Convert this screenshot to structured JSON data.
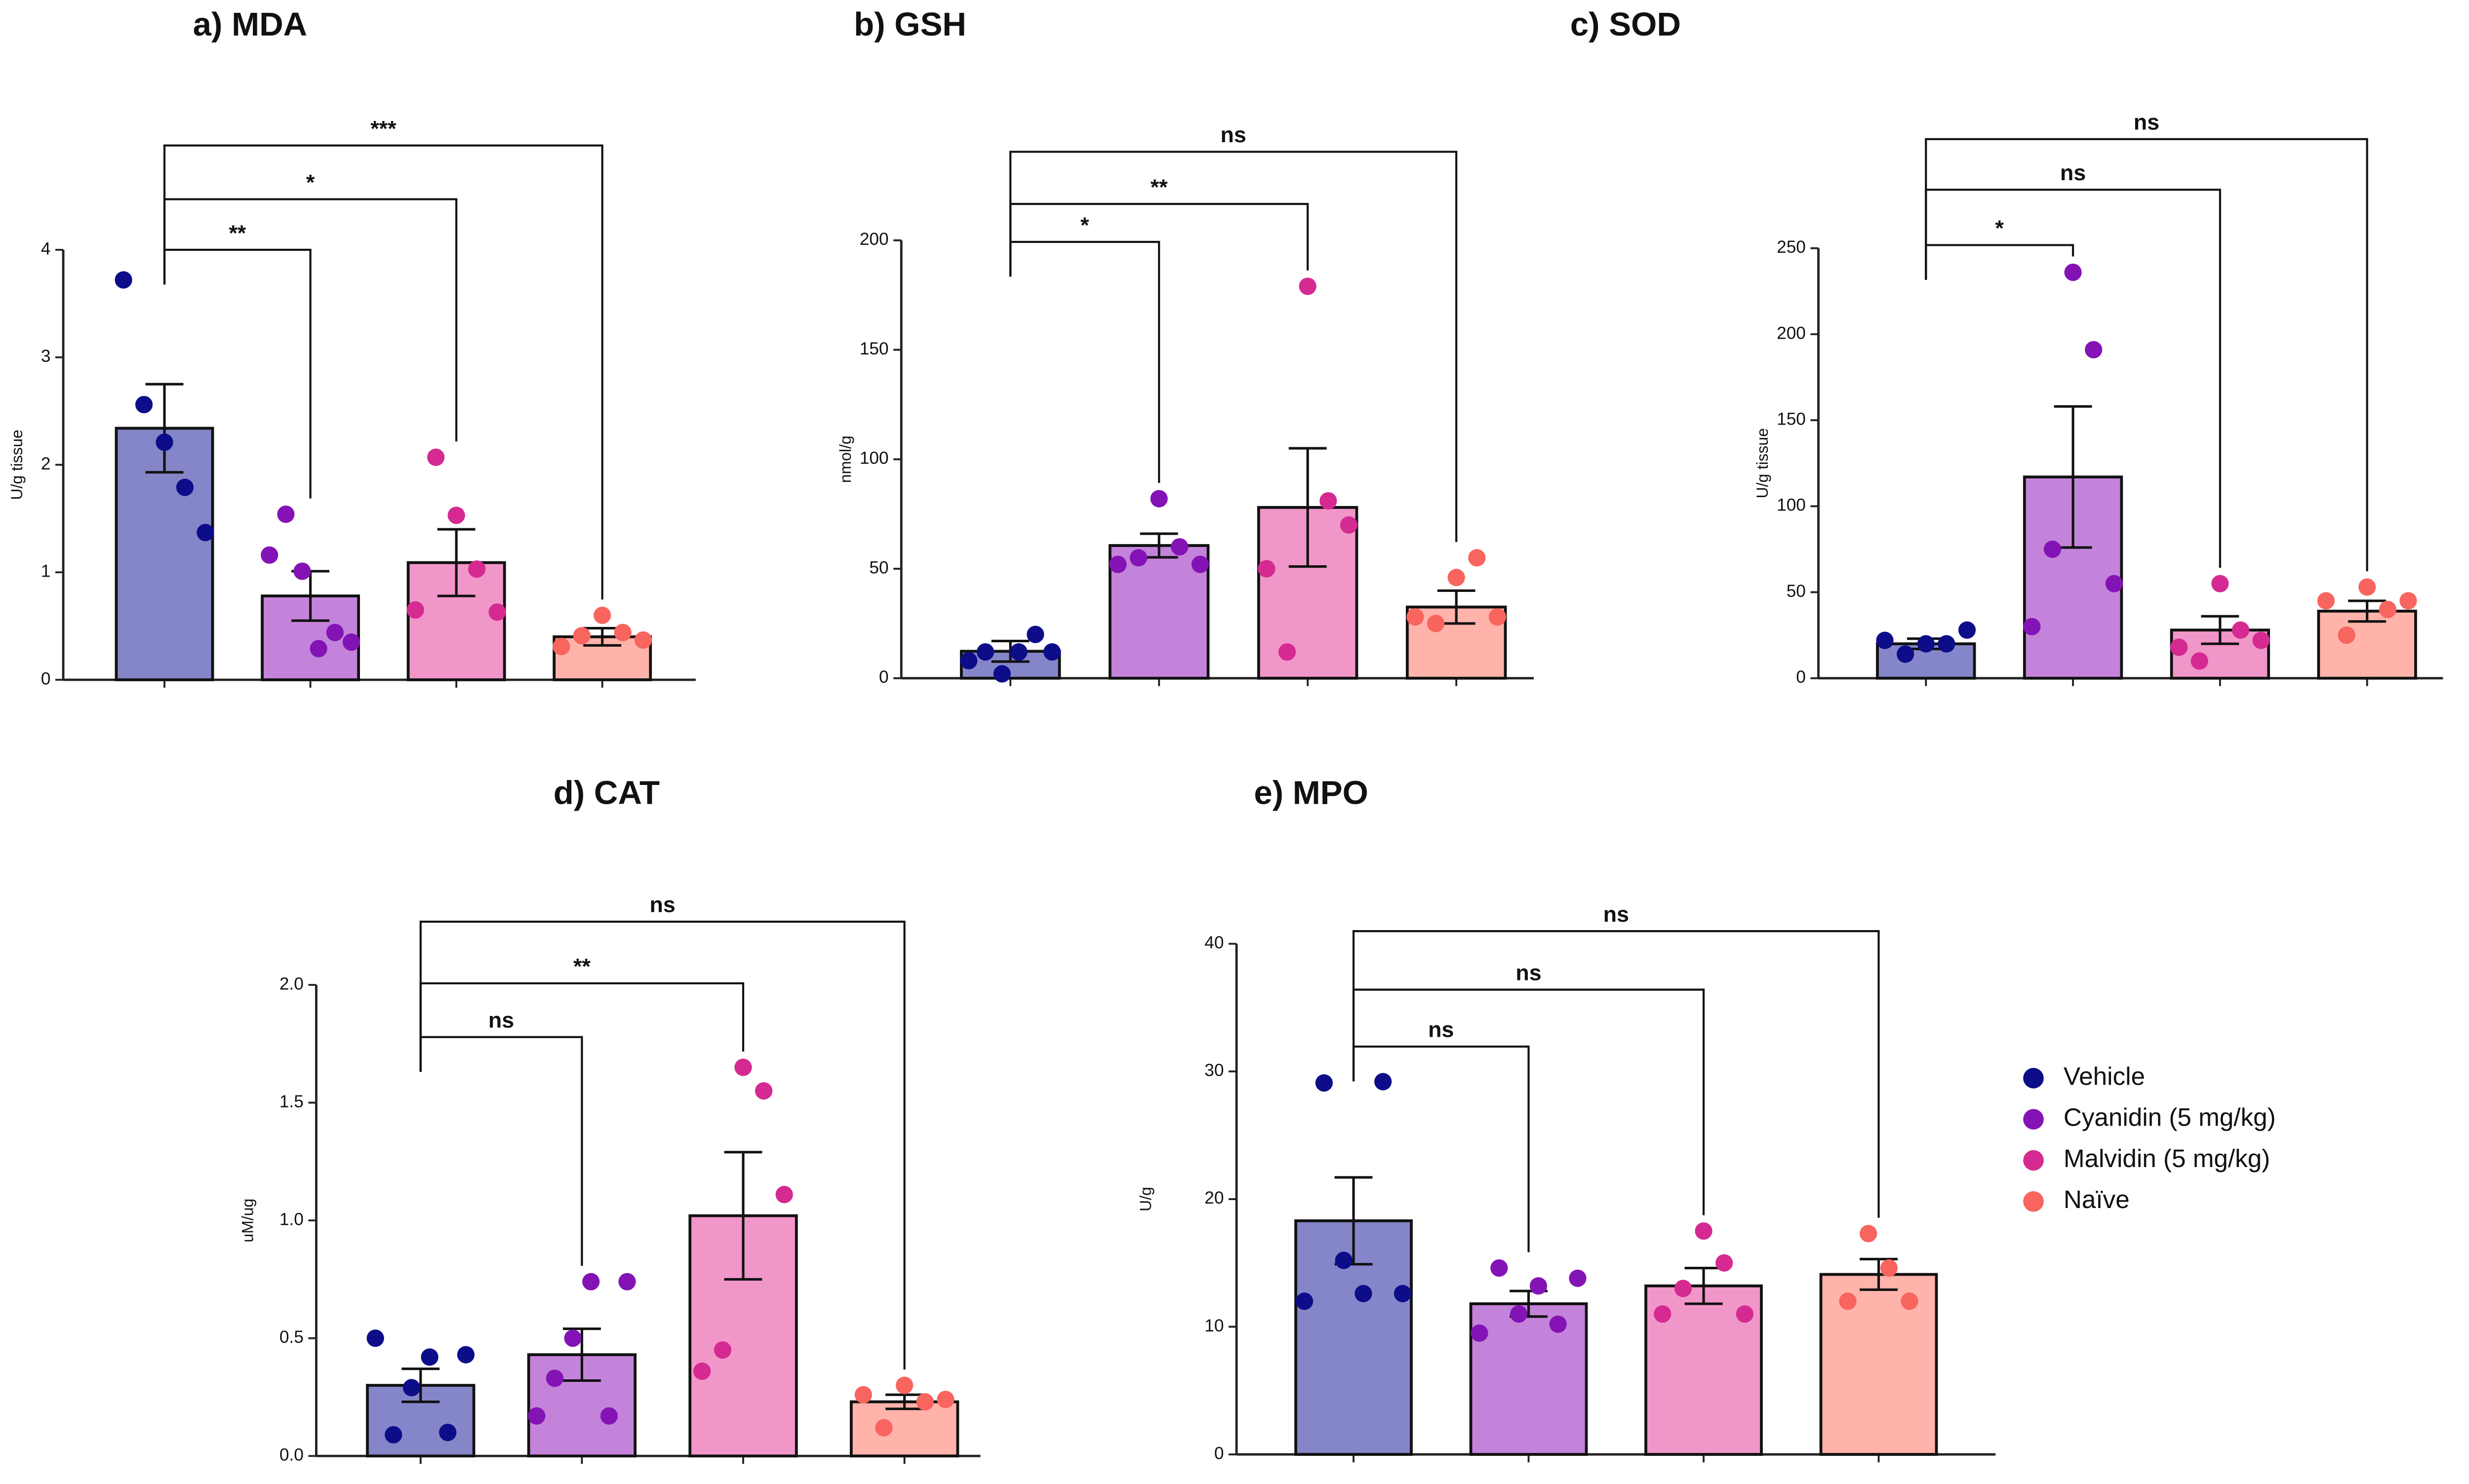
{
  "chart_data": [
    {
      "type": "bar",
      "title": "a)  MDA",
      "ylabel": "U/g tissue",
      "ylim": [
        0,
        4
      ],
      "yticks": [
        0,
        1,
        2,
        3,
        4
      ],
      "values": [
        2.34,
        0.78,
        1.09,
        0.4
      ],
      "errors": [
        0.41,
        0.23,
        0.31,
        0.08
      ],
      "points": [
        [
          3.72,
          2.56,
          2.21,
          1.79,
          1.37
        ],
        [
          1.16,
          1.54,
          1.01,
          0.29,
          0.44,
          0.35
        ],
        [
          0.65,
          2.07,
          1.53,
          1.03,
          0.63
        ],
        [
          0.31,
          0.41,
          0.6,
          0.44,
          0.37
        ]
      ],
      "comparisons": [
        {
          "from": 0,
          "to": 1,
          "label": "**"
        },
        {
          "from": 0,
          "to": 2,
          "label": "*"
        },
        {
          "from": 0,
          "to": 3,
          "label": "***"
        }
      ]
    },
    {
      "type": "bar",
      "title": "b) GSH",
      "ylabel": "nmol/g",
      "ylim": [
        0,
        200
      ],
      "yticks": [
        0,
        50,
        100,
        150,
        200
      ],
      "values": [
        12.3,
        60.6,
        78,
        32.5
      ],
      "errors": [
        4.7,
        5.4,
        27,
        7.5
      ],
      "points": [
        [
          8,
          12,
          2,
          12,
          20,
          12
        ],
        [
          52,
          55,
          82,
          60,
          52
        ],
        [
          50,
          12,
          179,
          81,
          70
        ],
        [
          28,
          25,
          46,
          55,
          28
        ]
      ],
      "comparisons": [
        {
          "from": 0,
          "to": 1,
          "label": "*"
        },
        {
          "from": 0,
          "to": 2,
          "label": "**"
        },
        {
          "from": 0,
          "to": 3,
          "label": "ns"
        }
      ]
    },
    {
      "type": "bar",
      "title": "c) SOD",
      "ylabel": "U/g tissue",
      "ylim": [
        0,
        250
      ],
      "yticks": [
        0,
        50,
        100,
        150,
        200,
        250
      ],
      "values": [
        20,
        117,
        28,
        39
      ],
      "errors": [
        3,
        41,
        8,
        6
      ],
      "points": [
        [
          22,
          14,
          20,
          20,
          28
        ],
        [
          30,
          75,
          236,
          191,
          55
        ],
        [
          18,
          10,
          55,
          28,
          22
        ],
        [
          45,
          25,
          53,
          40,
          45
        ]
      ],
      "comparisons": [
        {
          "from": 0,
          "to": 1,
          "label": "*"
        },
        {
          "from": 0,
          "to": 2,
          "label": "ns"
        },
        {
          "from": 0,
          "to": 3,
          "label": "ns"
        }
      ]
    },
    {
      "type": "bar",
      "title": "d)  CAT",
      "ylabel": "uM/ug",
      "ylim": [
        0,
        2
      ],
      "yticks": [
        {
          "value": 0,
          "label": "0.0"
        },
        {
          "value": 0.5,
          "label": "0.5"
        },
        {
          "value": 1,
          "label": "1.0"
        },
        {
          "value": 1.5,
          "label": "1.5"
        },
        {
          "value": 2,
          "label": "2.0"
        }
      ],
      "values": [
        0.3,
        0.43,
        1.02,
        0.23
      ],
      "errors": [
        0.07,
        0.11,
        0.27,
        0.03
      ],
      "points": [
        [
          0.5,
          0.09,
          0.29,
          0.42,
          0.1,
          0.43
        ],
        [
          0.17,
          0.33,
          0.5,
          0.74,
          0.17,
          0.74
        ],
        [
          0.36,
          0.45,
          1.65,
          1.55,
          1.11
        ],
        [
          0.26,
          0.12,
          0.3,
          0.23,
          0.24
        ]
      ],
      "comparisons": [
        {
          "from": 0,
          "to": 1,
          "label": "ns"
        },
        {
          "from": 0,
          "to": 2,
          "label": "**"
        },
        {
          "from": 0,
          "to": 3,
          "label": "ns"
        }
      ]
    },
    {
      "type": "bar",
      "title": "e) MPO",
      "ylabel": "U/g",
      "ylim": [
        0,
        40
      ],
      "yticks": [
        0,
        10,
        20,
        30,
        40
      ],
      "values": [
        18.3,
        11.8,
        13.2,
        14.1
      ],
      "errors": [
        3.4,
        1,
        1.4,
        1.2
      ],
      "points": [
        [
          12,
          29.1,
          15.2,
          12.6,
          29.2,
          12.6
        ],
        [
          9.5,
          14.6,
          11,
          13.2,
          10.2,
          13.8
        ],
        [
          11,
          13,
          17.5,
          15,
          11
        ],
        [
          12,
          17.3,
          14.6,
          12
        ]
      ],
      "comparisons": [
        {
          "from": 0,
          "to": 1,
          "label": "ns"
        },
        {
          "from": 0,
          "to": 2,
          "label": "ns"
        },
        {
          "from": 0,
          "to": 3,
          "label": "ns"
        }
      ]
    }
  ],
  "legend": [
    {
      "name": "Vehicle",
      "color": "#0d0d8a",
      "bar_color": "#8585c9"
    },
    {
      "name": "Cyanidin (5 mg/kg)",
      "color": "#8413b5",
      "bar_color": "#c483da"
    },
    {
      "name": "Malvidin (5 mg/kg)",
      "color": "#d42a91",
      "bar_color": "#f196c9"
    },
    {
      "name": "Naïve",
      "color": "#f8645e",
      "bar_color": "#ffb3aa"
    }
  ]
}
